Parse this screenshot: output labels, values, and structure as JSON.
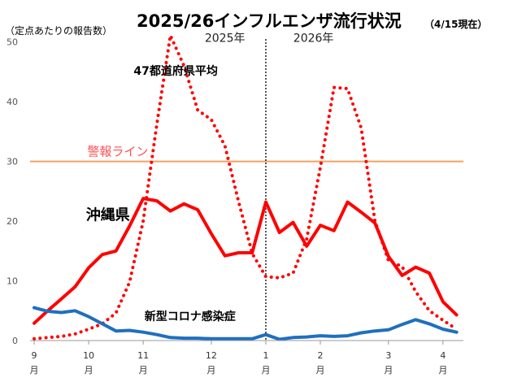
{
  "title": "2025/26インフルエンザ流行状況",
  "title_note": "（4/15現在）",
  "unit_label": "（定点あたりの報告数）",
  "colors": {
    "national": "#ff0000",
    "okinawa": "#ff0000",
    "newcorona": "#1f6fc0",
    "warning": "#f4a25c",
    "axis": "#999999"
  },
  "chart_data": {
    "type": "line",
    "title": "2025/26インフルエンザ流行状況",
    "ylabel": "（定点あたりの報告数）",
    "ylim": [
      0,
      55
    ],
    "yticks": [
      0,
      10,
      20,
      30,
      40,
      50
    ],
    "x_range": [
      -0.3,
      31.5
    ],
    "year_divider_x": 17,
    "year_labels": [
      {
        "text": "2025年",
        "x": 14
      },
      {
        "text": "2026年",
        "x": 20.5
      }
    ],
    "month_ticks": [
      {
        "month": "9",
        "unit": "月",
        "x": 0
      },
      {
        "month": "10",
        "unit": "月",
        "x": 4
      },
      {
        "month": "11",
        "unit": "月",
        "x": 8
      },
      {
        "month": "12",
        "unit": "月",
        "x": 13
      },
      {
        "month": "1",
        "unit": "月",
        "x": 17
      },
      {
        "month": "2",
        "unit": "月",
        "x": 21
      },
      {
        "month": "3",
        "unit": "月",
        "x": 26
      },
      {
        "month": "4",
        "unit": "月",
        "x": 30
      }
    ],
    "warning_line": {
      "value": 30,
      "label": "警報ライン"
    },
    "series": [
      {
        "name": "47都道府県平均",
        "style": "dotted",
        "label_x": 7.3,
        "label_y": 44.5,
        "x": [
          0,
          1,
          2,
          3,
          4,
          5,
          6,
          7,
          8,
          9,
          10,
          11,
          12,
          13,
          14,
          15,
          16,
          17,
          18,
          19,
          20,
          21,
          22,
          23,
          24,
          25,
          26,
          27,
          28,
          29,
          30,
          31
        ],
        "values": [
          0.3,
          0.5,
          0.7,
          1.1,
          1.9,
          2.8,
          4.6,
          9.8,
          20,
          36.2,
          51.1,
          46,
          38.6,
          37,
          32.6,
          23.3,
          14.6,
          10.7,
          10.5,
          11.3,
          17,
          29,
          42.4,
          42.2,
          35.6,
          20.1,
          13.4,
          12.4,
          8.2,
          5,
          3.4,
          1.9
        ]
      },
      {
        "name": "沖縄県",
        "style": "solid",
        "label_x": 3.8,
        "label_y": 20.2,
        "x": [
          0,
          1,
          2,
          3,
          4,
          5,
          6,
          7,
          8,
          9,
          10,
          11,
          12,
          13,
          14,
          15,
          16,
          17,
          18,
          19,
          20,
          21,
          22,
          23,
          24,
          25,
          26,
          27,
          28,
          29,
          30,
          31
        ],
        "values": [
          2.9,
          5,
          7,
          9,
          12.2,
          14.4,
          15,
          19.2,
          23.8,
          23.4,
          21.7,
          22.9,
          21.9,
          17.9,
          14.2,
          14.7,
          14.7,
          23.2,
          18.1,
          19.8,
          15.8,
          19.3,
          18.4,
          23.2,
          21.5,
          19.7,
          14.1,
          10.9,
          12.3,
          11.3,
          6.5,
          4.3
        ]
      },
      {
        "name": "新型コロナ感染症",
        "style": "solid",
        "label_x": 8.1,
        "label_y": 3.4,
        "x": [
          0,
          1,
          2,
          3,
          4,
          5,
          6,
          7,
          8,
          9,
          10,
          11,
          12,
          13,
          14,
          15,
          16,
          17,
          18,
          19,
          20,
          21,
          22,
          23,
          24,
          25,
          26,
          27,
          28,
          29,
          30,
          31
        ],
        "values": [
          5.5,
          4.9,
          4.7,
          5,
          4,
          2.8,
          1.6,
          1.7,
          1.4,
          1,
          0.5,
          0.4,
          0.4,
          0.3,
          0.3,
          0.3,
          0.3,
          1,
          0.2,
          0.5,
          0.6,
          0.8,
          0.7,
          0.8,
          1.3,
          1.6,
          1.8,
          2.7,
          3.5,
          2.8,
          1.9,
          1.4
        ]
      }
    ]
  }
}
